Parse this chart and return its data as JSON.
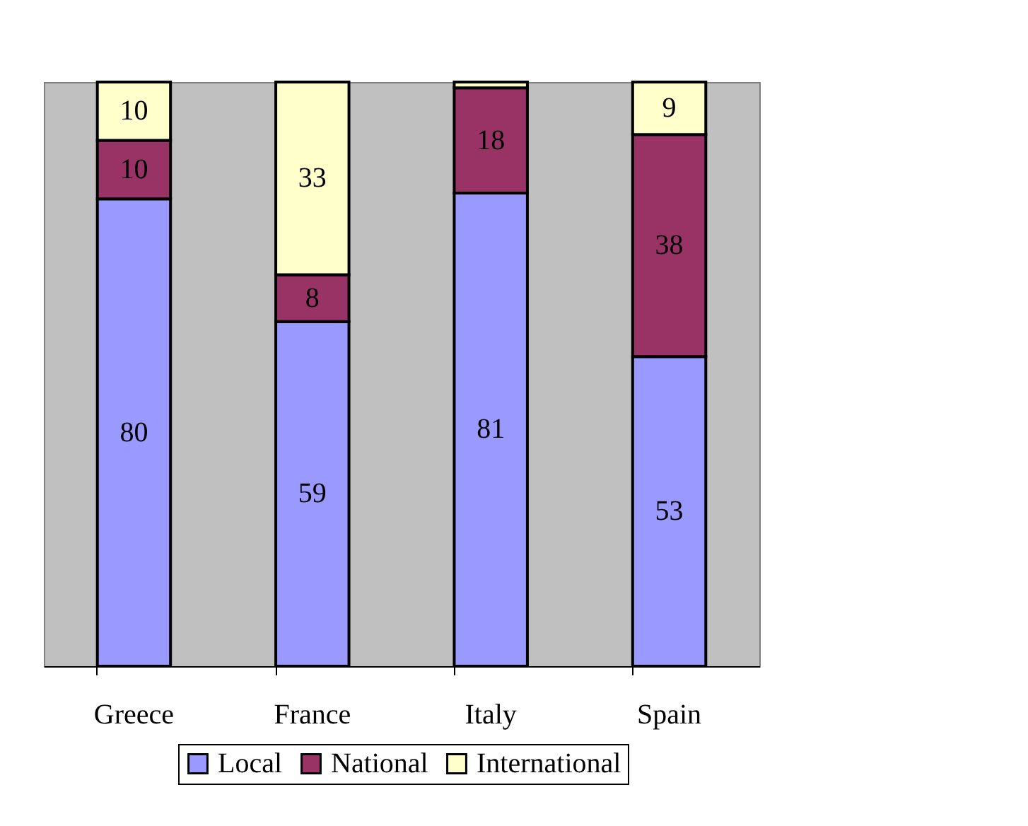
{
  "chart_data": {
    "type": "bar",
    "stacked": true,
    "categories": [
      "Greece",
      "France",
      "Italy",
      "Spain"
    ],
    "ylim": [
      0,
      100
    ],
    "legend": "bottom",
    "series": [
      {
        "name": "Local",
        "color": "#9999ff",
        "values": [
          80,
          59,
          81,
          53
        ],
        "value_labels": [
          "80",
          "59",
          "81",
          "53"
        ]
      },
      {
        "name": "National",
        "color": "#993366",
        "values": [
          10,
          8,
          18,
          38
        ],
        "value_labels": [
          "10",
          "8",
          "18",
          "38"
        ]
      },
      {
        "name": "International",
        "color": "#ffffcc",
        "values": [
          10,
          33,
          1,
          9
        ],
        "value_labels": [
          "10",
          "33",
          null,
          "9"
        ]
      }
    ]
  }
}
